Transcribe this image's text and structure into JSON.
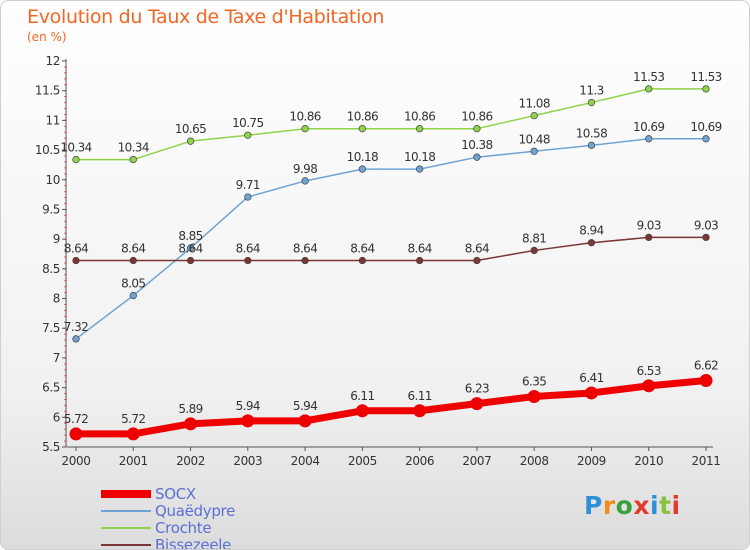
{
  "title": "Evolution du Taux de Taxe d'Habitation",
  "unit_label": "(en %)",
  "logo_text": "Proxiti",
  "chart_data": {
    "type": "line",
    "x": [
      "2000",
      "2001",
      "2002",
      "2003",
      "2004",
      "2005",
      "2006",
      "2007",
      "2008",
      "2009",
      "2010",
      "2011"
    ],
    "ylim": [
      5.5,
      12
    ],
    "yticks": [
      "5.5",
      "6",
      "6.5",
      "7",
      "7.5",
      "8",
      "8.5",
      "9",
      "9.5",
      "10",
      "10.5",
      "11",
      "11.5",
      "12"
    ],
    "grid": false,
    "legend_position": "bottom-left",
    "series": [
      {
        "name": "SOCX",
        "color": "#ee0000",
        "values": [
          5.72,
          5.72,
          5.89,
          5.94,
          5.94,
          6.11,
          6.11,
          6.23,
          6.35,
          6.41,
          6.53,
          6.62
        ],
        "labels": [
          "5.72",
          "5.72",
          "5.89",
          "5.94",
          "5.94",
          "6.11",
          "6.11",
          "6.23",
          "6.35",
          "6.41",
          "6.53",
          "6.62"
        ]
      },
      {
        "name": "Quaëdypre",
        "color": "#6fa3d4",
        "values": [
          7.32,
          8.05,
          8.85,
          9.71,
          9.98,
          10.18,
          10.18,
          10.38,
          10.48,
          10.58,
          10.69,
          10.69
        ],
        "labels": [
          "7.32",
          "8.05",
          "8.85",
          "9.71",
          "9.98",
          "10.18",
          "10.18",
          "10.38",
          "10.48",
          "10.58",
          "10.69",
          "10.69"
        ]
      },
      {
        "name": "Crochte",
        "color": "#8fd34a",
        "values": [
          10.34,
          10.34,
          10.65,
          10.75,
          10.86,
          10.86,
          10.86,
          10.86,
          11.08,
          11.3,
          11.53,
          11.53
        ],
        "labels": [
          "10.34",
          "10.34",
          "10.65",
          "10.75",
          "10.86",
          "10.86",
          "10.86",
          "10.86",
          "11.08",
          "11.3",
          "11.53",
          "11.53"
        ]
      },
      {
        "name": "Bissezeele",
        "color": "#7b3535",
        "values": [
          8.64,
          8.64,
          8.64,
          8.64,
          8.64,
          8.64,
          8.64,
          8.64,
          8.81,
          8.94,
          9.03,
          9.03
        ],
        "labels": [
          "8.64",
          "8.64",
          "8.64",
          "8.64",
          "8.64",
          "8.64",
          "8.64",
          "8.64",
          "8.81",
          "8.94",
          "9.03",
          "9.03"
        ]
      }
    ]
  }
}
